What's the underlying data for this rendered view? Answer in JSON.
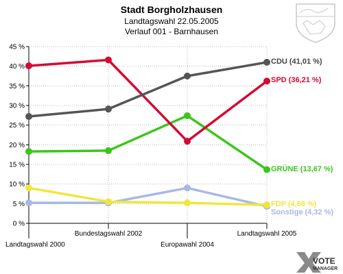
{
  "header": {
    "title": "Stadt Borgholzhausen",
    "subtitle1": "Landtagswahl 22.05.2005",
    "subtitle2": "Verlauf 001 - Barnhausen"
  },
  "brand": {
    "line1": "VOTE",
    "line2": "MANAGER"
  },
  "chart_data": {
    "type": "line",
    "categories": [
      "Landtagswahl 2000",
      "Bundestagswahl 2002",
      "Europawahl 2004",
      "Landtagswahl 2005"
    ],
    "ylim": [
      0,
      45
    ],
    "yticks": [
      "0 %",
      "5 %",
      "10 %",
      "15 %",
      "20 %",
      "25 %",
      "30 %",
      "35 %",
      "40 %",
      "45 %"
    ],
    "ytick_values": [
      0,
      5,
      10,
      15,
      20,
      25,
      30,
      35,
      40,
      45
    ],
    "grid": true,
    "series": [
      {
        "name": "CDU",
        "label": "CDU (41,01 %)",
        "color": "#555555",
        "values": [
          27.2,
          29.1,
          37.5,
          41.01
        ]
      },
      {
        "name": "SPD",
        "label": "SPD (36,21 %)",
        "color": "#d40a33",
        "values": [
          40.1,
          41.6,
          20.9,
          36.21
        ]
      },
      {
        "name": "GRÜNE",
        "label": "GRÜNE (13,67 %)",
        "color": "#3ac61a",
        "values": [
          18.3,
          18.5,
          27.4,
          13.67
        ]
      },
      {
        "name": "FDP",
        "label": "FDP (4,68 %)",
        "color": "#f0e63c",
        "values": [
          9.0,
          5.5,
          5.2,
          4.68
        ]
      },
      {
        "name": "Sonstige",
        "label": "Sonstige (4,32 %)",
        "color": "#a8b8e6",
        "values": [
          5.2,
          5.2,
          9.0,
          4.32
        ]
      }
    ]
  }
}
